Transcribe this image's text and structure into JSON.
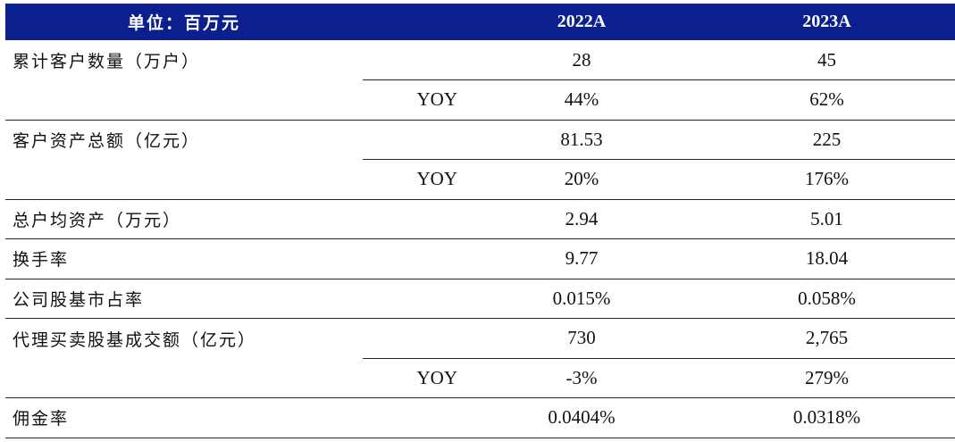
{
  "header": {
    "unit": "单位：百万元",
    "col_sub": "",
    "col_2022": "2022A",
    "col_2023": "2023A"
  },
  "rows": [
    {
      "label": "累计客户数量（万户）",
      "sub": "",
      "v2022": "28",
      "v2023": "45",
      "sep": "partial"
    },
    {
      "label": "",
      "sub": "YOY",
      "v2022": "44%",
      "v2023": "62%",
      "sep": "full"
    },
    {
      "label": "客户资产总额（亿元）",
      "sub": "",
      "v2022": "81.53",
      "v2023": "225",
      "sep": "partial"
    },
    {
      "label": "",
      "sub": "YOY",
      "v2022": "20%",
      "v2023": "176%",
      "sep": "full"
    },
    {
      "label": "总户均资产（万元）",
      "sub": "",
      "v2022": "2.94",
      "v2023": "5.01",
      "sep": "full"
    },
    {
      "label": "换手率",
      "sub": "",
      "v2022": "9.77",
      "v2023": "18.04",
      "sep": "full"
    },
    {
      "label": "公司股基市占率",
      "sub": "",
      "v2022": "0.015%",
      "v2023": "0.058%",
      "sep": "full"
    },
    {
      "label": "代理买卖股基成交额（亿元）",
      "sub": "",
      "v2022": "730",
      "v2023": "2,765",
      "sep": "partial"
    },
    {
      "label": "",
      "sub": "YOY",
      "v2022": "-3%",
      "v2023": "279%",
      "sep": "full"
    },
    {
      "label": "佣金率",
      "sub": "",
      "v2022": "0.0404%",
      "v2023": "0.0318%",
      "sep": "last"
    }
  ]
}
